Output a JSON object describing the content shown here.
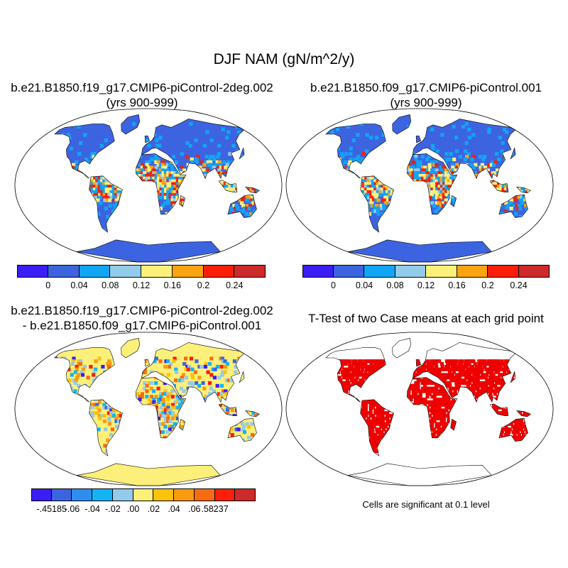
{
  "main_title": "DJF NAM (gN/m^2/y)",
  "panels": {
    "top_left": {
      "title_line1": "b.e21.B1850.f19_g17.CMIP6-piControl-2deg.002",
      "title_line2": "(yrs 900-999)"
    },
    "top_right": {
      "title_line1": "b.e21.B1850.f09_g17.CMIP6-piControl.001",
      "title_line2": "(yrs 900-999)"
    },
    "bottom_left": {
      "title_line1": "b.e21.B1850.f19_g17.CMIP6-piControl-2deg.002",
      "title_line2": "- b.e21.B1850.f09_g17.CMIP6-piControl.001"
    },
    "bottom_right": {
      "title_line1": "T-Test of two Case means at each grid point",
      "note": "Cells are significant at 0.1 level"
    }
  },
  "colorbar_top": {
    "colors": [
      "#3b1ef5",
      "#3d64e0",
      "#12a4f5",
      "#93cbea",
      "#fdf07a",
      "#fca311",
      "#fb1f0a",
      "#cd2a2a"
    ],
    "labels": [
      "0",
      "0.04",
      "0.08",
      "0.12",
      "0.16",
      "0.2",
      "0.24"
    ]
  },
  "colorbar_diff": {
    "colors": [
      "#3b1ef5",
      "#3d64e0",
      "#2d8ef0",
      "#12b4f5",
      "#93cbea",
      "#fdf07a",
      "#fcc20c",
      "#fb9a0c",
      "#f86b12",
      "#fb1f0a",
      "#cd2a2a"
    ],
    "labels": [
      "-.45185",
      "-.06",
      "-.04",
      "-.02",
      ".00",
      ".02",
      ".04",
      ".06",
      ".58237"
    ]
  },
  "colors": {
    "land_base": "#3d64e0",
    "diff_base": "#fdf07a",
    "significant": "#ee0000",
    "tropics_high": "#fb1f0a"
  }
}
